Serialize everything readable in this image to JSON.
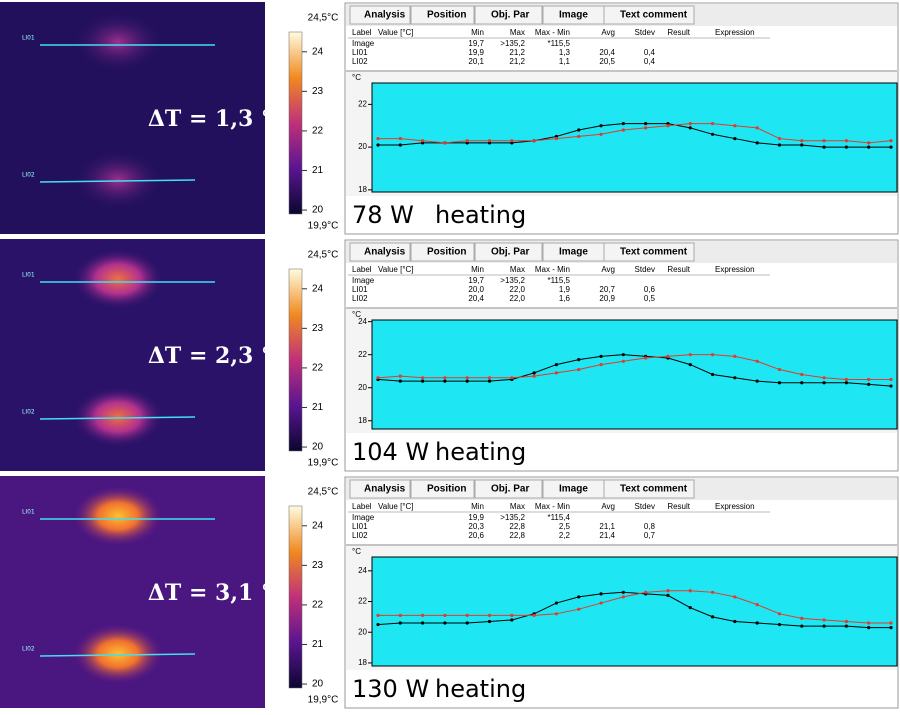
{
  "tabs": [
    "Analysis",
    "Position",
    "Obj. Par",
    "Image",
    "Text comment"
  ],
  "columns": [
    "Label",
    "Value [°C]",
    "Min",
    "Max",
    "Max - Min",
    "Avg",
    "Stdev",
    "Result",
    "Expression"
  ],
  "panels": [
    {
      "line_labels": [
        "LI01",
        "LI02"
      ],
      "delta": "ΔT = 1,3 °",
      "colorbar": {
        "lim": [
          {
            "value": 19.9,
            "label": "19,9°C"
          },
          {
            "value": 24.5,
            "label": "24,5°C"
          }
        ],
        "ticks": [
          24,
          23,
          22,
          21,
          20
        ]
      },
      "rows": [
        [
          "Image",
          null,
          "19,7",
          ">135,2",
          "*115,5",
          null,
          null,
          null,
          null
        ],
        [
          "LI01",
          null,
          "19,9",
          "21,2",
          "1,3",
          "20,4",
          "0,4",
          null,
          null
        ],
        [
          "LI02",
          null,
          "20,1",
          "21,2",
          "1,1",
          "20,5",
          "0,4",
          null,
          null
        ]
      ],
      "chart_data": {
        "type": "line",
        "y_unit": "°C",
        "ylim": [
          17.9,
          23.0
        ],
        "yticks": [
          18,
          20,
          22
        ],
        "series": [
          {
            "color": "#000000",
            "values": [
              20.1,
              20.1,
              20.2,
              20.2,
              20.2,
              20.2,
              20.2,
              20.3,
              20.5,
              20.8,
              21.0,
              21.1,
              21.1,
              21.1,
              20.9,
              20.6,
              20.4,
              20.2,
              20.1,
              20.1,
              20.0,
              20.0,
              20.0,
              20.0
            ]
          },
          {
            "color": "#e03c2c",
            "values": [
              20.4,
              20.4,
              20.3,
              20.2,
              20.3,
              20.3,
              20.3,
              20.3,
              20.4,
              20.5,
              20.6,
              20.8,
              20.9,
              21.0,
              21.1,
              21.1,
              21.0,
              20.9,
              20.4,
              20.3,
              20.3,
              20.3,
              20.2,
              20.3
            ]
          }
        ]
      },
      "power": "78 W",
      "mode": "heating"
    },
    {
      "line_labels": [
        "LI01",
        "LI02"
      ],
      "delta": "ΔT = 2,3 °",
      "colorbar": {
        "lim": [
          {
            "value": 19.9,
            "label": "19,9°C"
          },
          {
            "value": 24.5,
            "label": "24,5°C"
          }
        ],
        "ticks": [
          24,
          23,
          22,
          21,
          20
        ]
      },
      "rows": [
        [
          "Image",
          null,
          "19,7",
          ">135,2",
          "*115,5",
          null,
          null,
          null,
          null
        ],
        [
          "LI01",
          null,
          "20,0",
          "22,0",
          "1,9",
          "20,7",
          "0,6",
          null,
          null
        ],
        [
          "LI02",
          null,
          "20,4",
          "22,0",
          "1,6",
          "20,9",
          "0,5",
          null,
          null
        ]
      ],
      "chart_data": {
        "type": "line",
        "y_unit": "°C",
        "ylim": [
          17.5,
          24.1
        ],
        "yticks": [
          18,
          20,
          22,
          24
        ],
        "series": [
          {
            "color": "#000000",
            "values": [
              20.5,
              20.4,
              20.4,
              20.4,
              20.4,
              20.4,
              20.5,
              20.9,
              21.4,
              21.7,
              21.9,
              22.0,
              21.9,
              21.8,
              21.4,
              20.8,
              20.6,
              20.4,
              20.3,
              20.3,
              20.3,
              20.3,
              20.2,
              20.1
            ]
          },
          {
            "color": "#e03c2c",
            "values": [
              20.6,
              20.7,
              20.6,
              20.6,
              20.6,
              20.6,
              20.6,
              20.7,
              20.9,
              21.1,
              21.4,
              21.6,
              21.8,
              21.9,
              22.0,
              22.0,
              21.9,
              21.6,
              21.1,
              20.8,
              20.6,
              20.5,
              20.5,
              20.5
            ]
          }
        ]
      },
      "power": "104 W",
      "mode": "heating"
    },
    {
      "line_labels": [
        "LI01",
        "LI02"
      ],
      "delta": "ΔT = 3,1 °",
      "colorbar": {
        "lim": [
          {
            "value": 19.9,
            "label": "19,9°C"
          },
          {
            "value": 24.5,
            "label": "24,5°C"
          }
        ],
        "ticks": [
          24,
          23,
          22,
          21,
          20
        ]
      },
      "rows": [
        [
          "Image",
          null,
          "19,9",
          ">135,2",
          "*115,4",
          null,
          null,
          null,
          null
        ],
        [
          "LI01",
          null,
          "20,3",
          "22,8",
          "2,5",
          "21,1",
          "0,8",
          null,
          null
        ],
        [
          "LI02",
          null,
          "20,6",
          "22,8",
          "2,2",
          "21,4",
          "0,7",
          null,
          null
        ]
      ],
      "chart_data": {
        "type": "line",
        "y_unit": "°C",
        "ylim": [
          17.8,
          24.9
        ],
        "yticks": [
          18,
          20,
          22,
          24
        ],
        "series": [
          {
            "color": "#000000",
            "values": [
              20.5,
              20.6,
              20.6,
              20.6,
              20.6,
              20.7,
              20.8,
              21.2,
              21.9,
              22.3,
              22.5,
              22.6,
              22.5,
              22.4,
              21.6,
              21.0,
              20.7,
              20.6,
              20.5,
              20.4,
              20.4,
              20.4,
              20.3,
              20.3
            ]
          },
          {
            "color": "#e03c2c",
            "values": [
              21.1,
              21.1,
              21.1,
              21.1,
              21.1,
              21.1,
              21.1,
              21.1,
              21.2,
              21.5,
              21.9,
              22.3,
              22.6,
              22.7,
              22.7,
              22.6,
              22.3,
              21.8,
              21.2,
              20.9,
              20.8,
              20.7,
              20.6,
              20.6
            ]
          }
        ]
      },
      "power": "130 W",
      "mode": "heating"
    }
  ]
}
